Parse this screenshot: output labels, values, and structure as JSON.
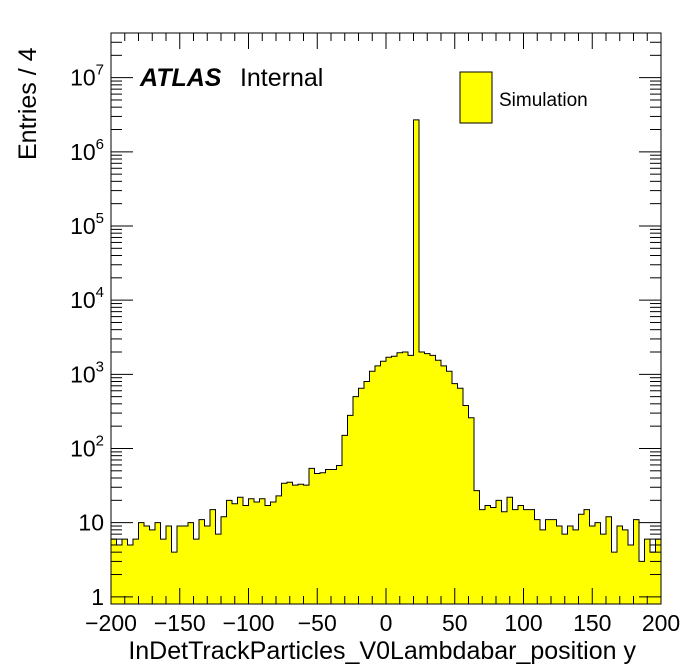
{
  "chart_data": {
    "type": "bar",
    "subtype": "histogram",
    "xlabel": "InDetTrackParticles_V0Lambdabar_position y",
    "ylabel": "Entries / 4",
    "xlim": [
      -200,
      200
    ],
    "ylim": [
      0.8,
      40000000
    ],
    "y_scale": "log",
    "bin_width": 4,
    "fill_color": "#ffff00",
    "edge_color": "#000000",
    "x_ticks": [
      -200,
      -150,
      -100,
      -50,
      0,
      50,
      100,
      150,
      200
    ],
    "y_tick_labels": [
      {
        "value": 1,
        "base": "1",
        "exp": ""
      },
      {
        "value": 10,
        "base": "10",
        "exp": ""
      },
      {
        "value": 100,
        "base": "10",
        "exp": "2"
      },
      {
        "value": 1000,
        "base": "10",
        "exp": "3"
      },
      {
        "value": 10000,
        "base": "10",
        "exp": "4"
      },
      {
        "value": 100000,
        "base": "10",
        "exp": "5"
      },
      {
        "value": 1000000,
        "base": "10",
        "exp": "6"
      },
      {
        "value": 10000000,
        "base": "10",
        "exp": "7"
      }
    ],
    "legend": {
      "label": "Simulation",
      "position": "top-right"
    },
    "series": [
      {
        "values": [
          6,
          5,
          6,
          5,
          6,
          10,
          9,
          8,
          10,
          6,
          9,
          4,
          9,
          9,
          10,
          6,
          11,
          9,
          15,
          7,
          12,
          20,
          18,
          22,
          17,
          21,
          19,
          21,
          17,
          19,
          23,
          34,
          35,
          32,
          33,
          32,
          54,
          46,
          47,
          52,
          52,
          59,
          150,
          280,
          500,
          650,
          800,
          1100,
          1300,
          1500,
          1700,
          1750,
          1950,
          2000,
          1800,
          2700000,
          2000,
          1900,
          1800,
          1550,
          1300,
          1100,
          750,
          650,
          380,
          260,
          27,
          15,
          17,
          16,
          20,
          14,
          22,
          15,
          17,
          15,
          15,
          11,
          8,
          11,
          11,
          9,
          7,
          9,
          8,
          13,
          15,
          9,
          10,
          7,
          12,
          4,
          9,
          8,
          5,
          11,
          3,
          6,
          4,
          6
        ]
      }
    ]
  },
  "annotation": {
    "bold": "ATLAS",
    "plain": "Internal"
  }
}
